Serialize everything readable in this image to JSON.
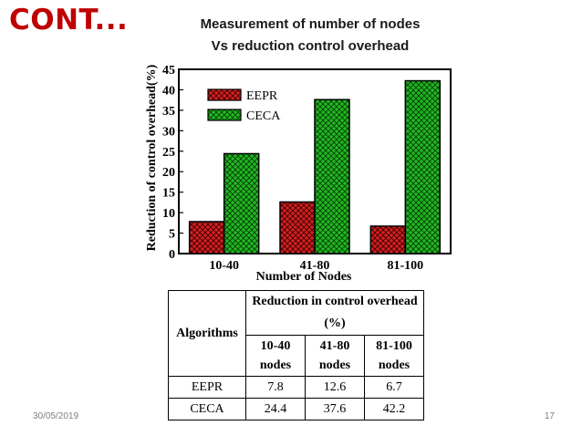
{
  "slide": {
    "heading": "CONT...",
    "title_line1": "Measurement of number of nodes",
    "title_line2": "Vs reduction control overhead",
    "date": "30/05/2019",
    "page_number": "17"
  },
  "colors": {
    "heading": "#c00000",
    "eepr": "#d42020",
    "ceca": "#22b822"
  },
  "chart_data": {
    "type": "bar",
    "categories": [
      "10-40",
      "41-80",
      "81-100"
    ],
    "series": [
      {
        "name": "EEPR",
        "values": [
          7.8,
          12.6,
          6.7
        ]
      },
      {
        "name": "CECA",
        "values": [
          24.4,
          37.6,
          42.2
        ]
      }
    ],
    "xlabel": "Number of Nodes",
    "ylabel": "Reduction of control overhead(%)",
    "ylim": [
      0,
      45
    ],
    "yticks": [
      0,
      5,
      10,
      15,
      20,
      25,
      30,
      35,
      40,
      45
    ],
    "legend_position": "top-left",
    "grid": false
  },
  "table": {
    "row_header": "Algorithms",
    "group_header": "Reduction in control overhead (%)",
    "columns": [
      "10-40 nodes",
      "41-80 nodes",
      "81-100 nodes"
    ],
    "rows": [
      {
        "name": "EEPR",
        "values": [
          "7.8",
          "12.6",
          "6.7"
        ]
      },
      {
        "name": "CECA",
        "values": [
          "24.4",
          "37.6",
          "42.2"
        ]
      }
    ]
  }
}
